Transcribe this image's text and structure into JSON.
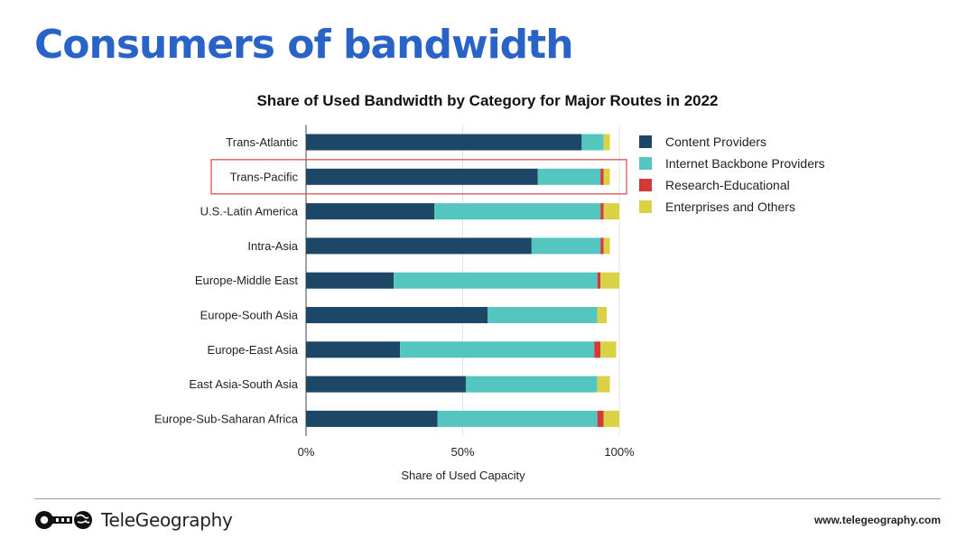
{
  "page": {
    "title": "Consumers of bandwidth",
    "brand": "TeleGeography",
    "url": "www.telegeography.com"
  },
  "colors": {
    "title": "#2a63c8",
    "highlight": "#e05050"
  },
  "chart_data": {
    "type": "bar",
    "orientation": "horizontal",
    "stacked": true,
    "title": "Share of Used Bandwidth by Category for Major Routes in 2022",
    "xlabel": "Share of Used Capacity",
    "ylabel": "",
    "xlim": [
      0,
      100
    ],
    "xticks": [
      "0%",
      "50%",
      "100%"
    ],
    "grid": true,
    "legend_position": "right",
    "highlighted_category": "Trans-Pacific",
    "categories": [
      "Trans-Atlantic",
      "Trans-Pacific",
      "U.S.-Latin America",
      "Intra-Asia",
      "Europe-Middle East",
      "Europe-South Asia",
      "Europe-East Asia",
      "East Asia-South Asia",
      "Europe-Sub-Saharan Africa"
    ],
    "series": [
      {
        "name": "Content Providers",
        "color": "#1d4766",
        "values": [
          88,
          74,
          41,
          72,
          28,
          58,
          30,
          51,
          42
        ]
      },
      {
        "name": "Internet Backbone Providers",
        "color": "#55c6bf",
        "values": [
          7,
          20,
          53,
          22,
          65,
          35,
          62,
          42,
          51
        ]
      },
      {
        "name": "Research-Educational",
        "color": "#d4393a",
        "values": [
          0,
          1,
          1,
          1,
          1,
          0,
          2,
          0,
          2
        ]
      },
      {
        "name": "Enterprises and Others",
        "color": "#d8d244",
        "values": [
          2,
          2,
          5,
          2,
          6,
          3,
          5,
          4,
          5
        ]
      }
    ]
  }
}
